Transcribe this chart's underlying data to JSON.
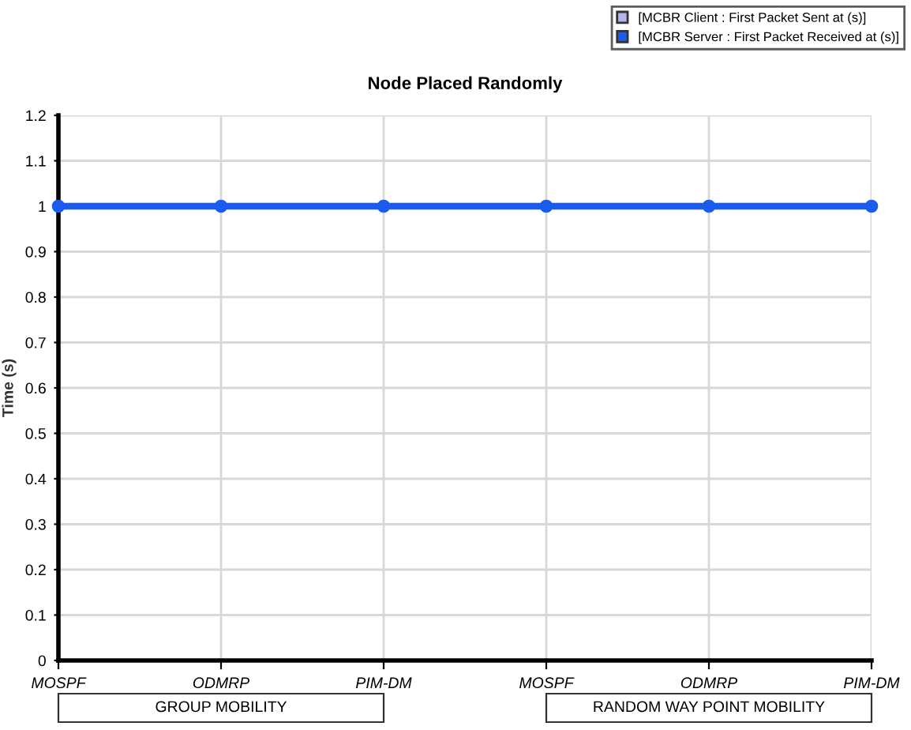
{
  "chart_data": {
    "type": "line",
    "title": "Node Placed Randomly",
    "ylabel": "Time (s)",
    "categories": [
      "MOSPF",
      "ODMRP",
      "PIM-DM",
      "MOSPF",
      "ODMRP",
      "PIM-DM"
    ],
    "series": [
      {
        "name": "[MCBR Client : First Packet Sent at (s)]",
        "color": "#b4b4f0",
        "values": [
          null,
          null,
          null,
          null,
          null,
          null
        ]
      },
      {
        "name": "[MCBR Server : First Packet Received at (s)]",
        "color": "#1a5cf0",
        "values": [
          1,
          1,
          1,
          1,
          1,
          1
        ]
      }
    ],
    "ylim": [
      0,
      1.2
    ],
    "yticks": [
      0,
      0.1,
      0.2,
      0.3,
      0.4,
      0.5,
      0.6,
      0.7,
      0.8,
      0.9,
      1,
      1.1,
      1.2
    ],
    "grid": true,
    "legend": "top right",
    "marker": "circle",
    "line_style": "solid",
    "annotations": [
      "GROUP MOBILITY",
      "RANDOM WAY POINT MOBILITY"
    ]
  }
}
